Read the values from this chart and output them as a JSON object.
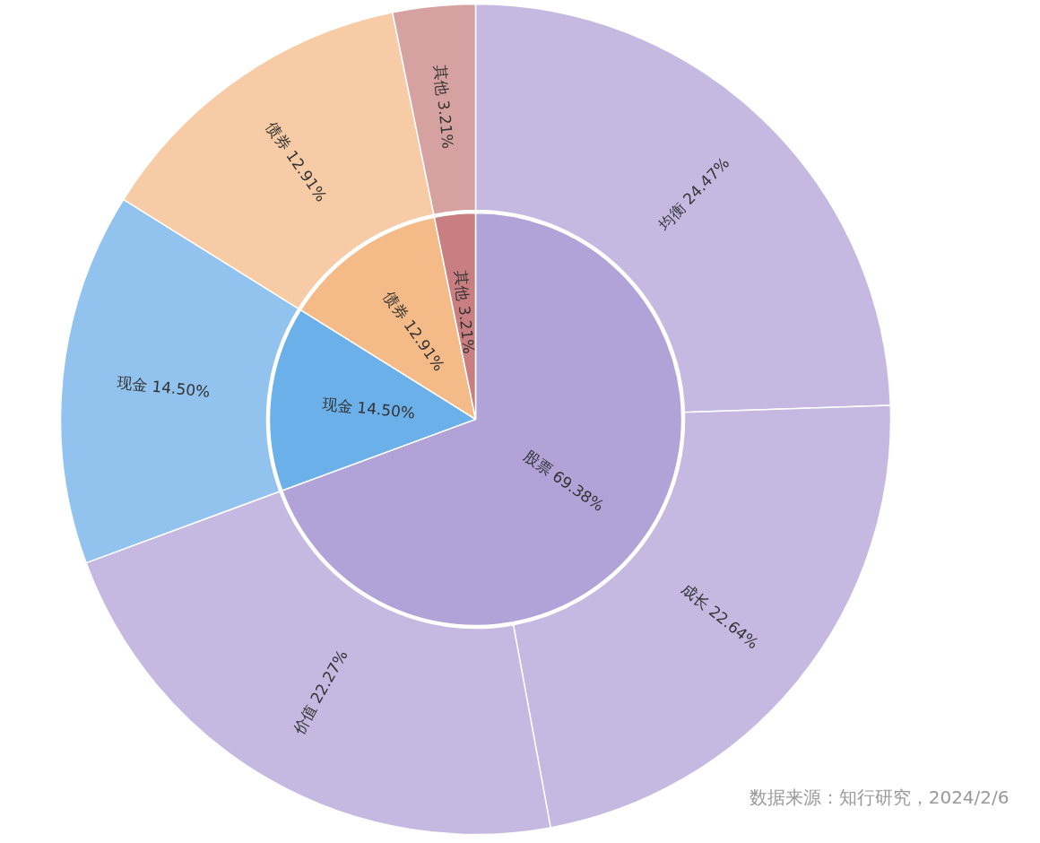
{
  "chart_data": {
    "type": "pie",
    "data_labels": true,
    "categories": [
      "股票",
      "现金",
      "债券",
      "其他",
      "均衡",
      "成长",
      "价值",
      "现金",
      "债券",
      "其他"
    ],
    "colors": [
      "#b1a3d8",
      "#6cb0ea",
      "#f4bb88",
      "#c97f82",
      "#c5b9e2",
      "#c5b9e2",
      "#c5b9e2",
      "#92c3ee",
      "#f6cba5",
      "#d6a1a1"
    ],
    "series": [
      {
        "values": [
          69.38,
          14.5,
          12.91,
          3.21,
          null,
          null,
          null,
          null,
          null,
          null
        ],
        "value_labels": [
          "69.38%",
          "14.50%",
          "12.91%",
          "3.21%",
          null,
          null,
          null,
          null,
          null,
          null
        ]
      },
      {
        "values": [
          null,
          null,
          null,
          null,
          24.47,
          22.64,
          22.27,
          14.5,
          12.91,
          3.21
        ],
        "value_labels": [
          null,
          null,
          null,
          null,
          "24.47%",
          "22.64%",
          "22.27%",
          "14.50%",
          "12.91%",
          "3.21%"
        ]
      }
    ],
    "annotations": [
      "数据来源：知行研究，2024/2/6"
    ]
  }
}
